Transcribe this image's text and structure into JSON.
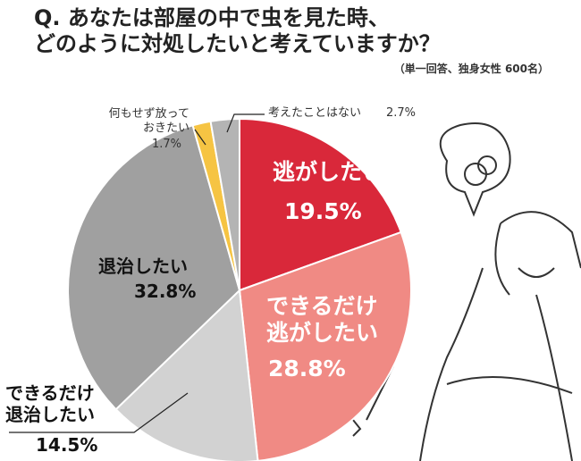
{
  "title": "Q. あなたは部屋の中で虫を見た時、\nどのように対処したいと考えていますか？",
  "chart_data": {
    "type": "pie",
    "subtitle": "（単一回答、独身女性 600名）",
    "categories": [
      "逃がしたい",
      "できるだけ\n逃がしたい",
      "できるだけ\n退治したい",
      "退治したい",
      "何もせず放って\nおきたい",
      "考えたことはない"
    ],
    "values": [
      19.5,
      28.8,
      14.5,
      32.8,
      1.7,
      2.7
    ],
    "value_labels": [
      "19.5%",
      "28.8%",
      "14.5%",
      "32.8%",
      "1.7%",
      "2.7%"
    ],
    "colors": [
      "#d9283a",
      "#f08a84",
      "#d2d2d2",
      "#a0a0a0",
      "#f6c443",
      "#b4b4b4"
    ]
  }
}
